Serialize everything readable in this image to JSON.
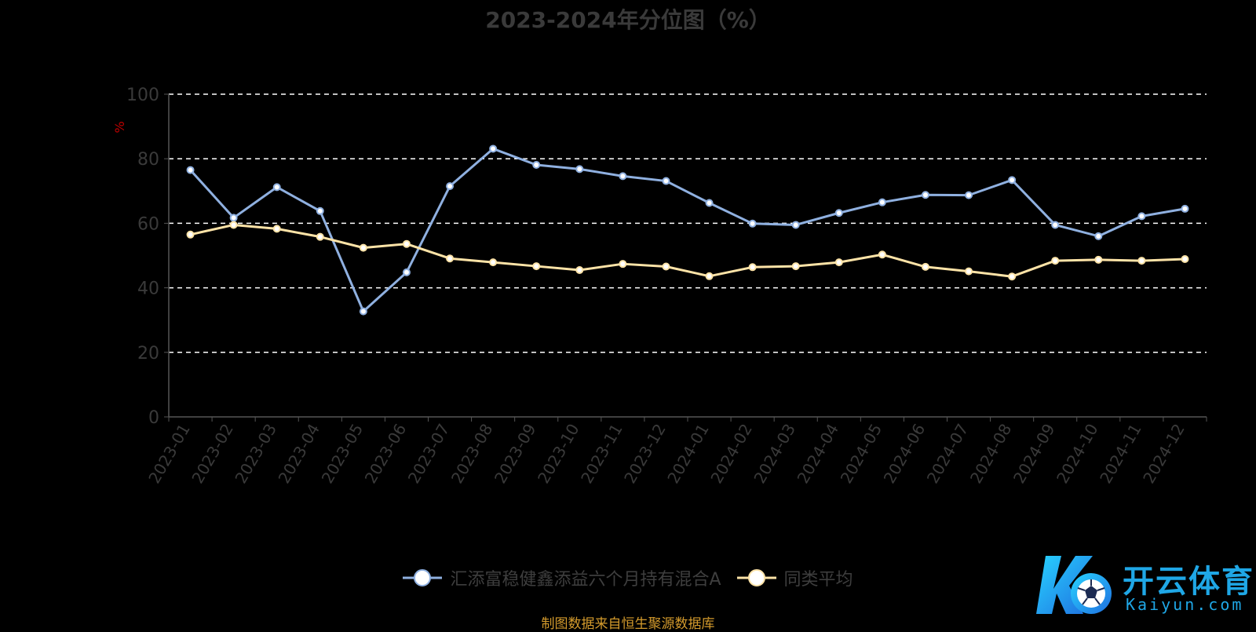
{
  "chart_data": {
    "type": "line",
    "title": "2023-2024年分位图（%）",
    "ylabel": "%",
    "xlabel": "",
    "ylim": [
      0,
      100
    ],
    "yticks": [
      0,
      20,
      40,
      60,
      80,
      100
    ],
    "grid": true,
    "legend_position": "bottom",
    "categories": [
      "2023-01",
      "2023-02",
      "2023-03",
      "2023-04",
      "2023-05",
      "2023-06",
      "2023-07",
      "2023-08",
      "2023-09",
      "2023-10",
      "2023-11",
      "2023-12",
      "2024-01",
      "2024-02",
      "2024-03",
      "2024-04",
      "2024-05",
      "2024-06",
      "2024-07",
      "2024-08",
      "2024-09",
      "2024-10",
      "2024-11",
      "2024-12"
    ],
    "series": [
      {
        "name": "汇添富稳健鑫添益六个月持有混合A",
        "color": "#8fb0e0",
        "values": [
          76.5,
          61.7,
          71.2,
          63.8,
          32.7,
          44.8,
          71.5,
          83.1,
          78.1,
          76.8,
          74.6,
          73.1,
          66.3,
          59.9,
          59.5,
          63.2,
          66.5,
          68.8,
          68.7,
          73.4,
          59.5,
          56.0,
          62.2,
          64.5
        ]
      },
      {
        "name": "同类平均",
        "color": "#fde3a7",
        "values": [
          56.5,
          59.5,
          58.3,
          55.8,
          52.4,
          53.6,
          49.1,
          47.9,
          46.7,
          45.5,
          47.4,
          46.6,
          43.6,
          46.4,
          46.7,
          47.9,
          50.3,
          46.5,
          45.1,
          43.5,
          48.4,
          48.7,
          48.4,
          48.9
        ]
      }
    ]
  },
  "source_note": "制图数据来自恒生聚源数据库",
  "watermark": {
    "brand_cn": "开云体育",
    "brand_en": "Kaiyun.com"
  }
}
